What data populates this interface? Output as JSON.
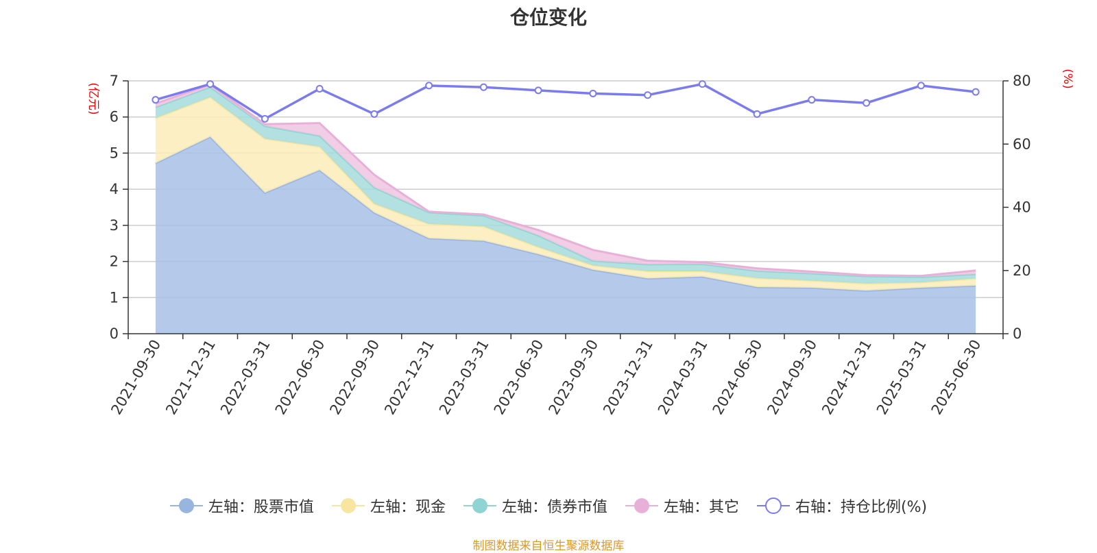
{
  "chart_data": {
    "type": "area",
    "title": "仓位变化",
    "categories": [
      "2021-09-30",
      "2021-12-31",
      "2022-03-31",
      "2022-06-30",
      "2022-09-30",
      "2022-12-31",
      "2023-03-31",
      "2023-06-30",
      "2023-09-30",
      "2023-12-31",
      "2024-03-31",
      "2024-06-30",
      "2024-09-30",
      "2024-12-31",
      "2025-03-31",
      "2025-06-30"
    ],
    "left_axis": {
      "unit": "(亿元)",
      "ylim": [
        0,
        7
      ],
      "ticks": [
        "0",
        "1",
        "2",
        "3",
        "4",
        "5",
        "6",
        "7"
      ]
    },
    "right_axis": {
      "unit": "(%)",
      "ylim": [
        0,
        80
      ],
      "ticks": [
        "0",
        "20",
        "40",
        "60",
        "80"
      ]
    },
    "stacked": true,
    "series": [
      {
        "name": "左轴：股票市值",
        "axis": "left",
        "color": "#a8c1e6",
        "line_color": "#98b5e0",
        "values": [
          4.72,
          5.45,
          3.9,
          4.53,
          3.35,
          2.64,
          2.57,
          2.2,
          1.77,
          1.53,
          1.58,
          1.29,
          1.27,
          1.19,
          1.27,
          1.33
        ]
      },
      {
        "name": "左轴：现金",
        "axis": "left",
        "color": "#faecb8",
        "line_color": "#f8e6a0",
        "values": [
          1.25,
          1.1,
          1.5,
          0.65,
          0.25,
          0.4,
          0.4,
          0.2,
          0.12,
          0.2,
          0.15,
          0.25,
          0.2,
          0.2,
          0.15,
          0.2
        ]
      },
      {
        "name": "左轴：债券市值",
        "axis": "left",
        "color": "#a6dcdc",
        "line_color": "#8fd3d3",
        "values": [
          0.3,
          0.28,
          0.35,
          0.3,
          0.45,
          0.32,
          0.3,
          0.32,
          0.13,
          0.19,
          0.2,
          0.2,
          0.2,
          0.2,
          0.15,
          0.12
        ]
      },
      {
        "name": "左轴：其它",
        "axis": "left",
        "color": "#f0c6e2",
        "line_color": "#e8b0d8",
        "values": [
          0.1,
          0.07,
          0.05,
          0.35,
          0.35,
          0.02,
          0.03,
          0.15,
          0.3,
          0.1,
          0.05,
          0.07,
          0.05,
          0.03,
          0.03,
          0.1
        ]
      },
      {
        "name": "右轴：持仓比例(%)",
        "axis": "right",
        "type": "line",
        "color": "#7b7bf0",
        "values": [
          74,
          79,
          68,
          77.5,
          69.5,
          78.5,
          78,
          77,
          76,
          75.5,
          79,
          69.5,
          74,
          73,
          78.5,
          76.5
        ]
      }
    ],
    "grid": true,
    "legend_position": "bottom"
  },
  "source_note": "制图数据来自恒生聚源数据库"
}
